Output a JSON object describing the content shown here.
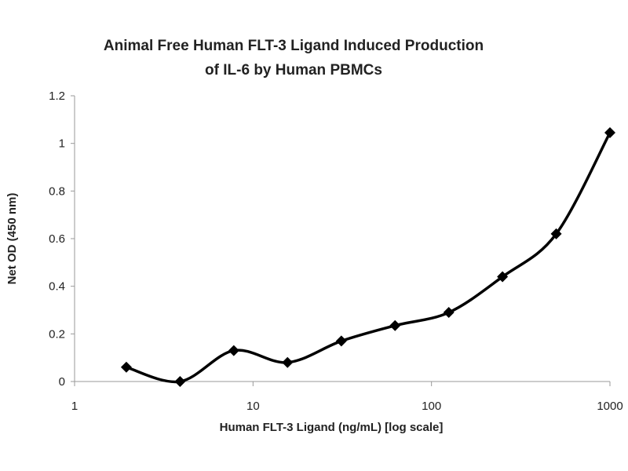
{
  "chart_data": {
    "type": "line",
    "title": [
      "Animal Free Human FLT-3 Ligand Induced Production",
      "of IL-6 by Human PBMCs"
    ],
    "xlabel": "Human FLT-3 Ligand (ng/mL) [log scale]",
    "ylabel": "Net OD (450 nm)",
    "xscale": "log",
    "xlim": [
      1,
      1000
    ],
    "ylim": [
      0,
      1.2
    ],
    "xticks": [
      "1",
      "10",
      "100",
      "1000"
    ],
    "yticks": [
      "0",
      "0.2",
      "0.4",
      "0.6",
      "0.8",
      "1",
      "1.2"
    ],
    "grid": false,
    "marker": "diamond",
    "line_color": "#000000",
    "series": [
      {
        "name": "IL-6",
        "x": [
          1.95,
          3.9,
          7.8,
          15.6,
          31.25,
          62.5,
          125,
          250,
          500,
          1000
        ],
        "y": [
          0.06,
          0.0,
          0.13,
          0.08,
          0.17,
          0.235,
          0.29,
          0.44,
          0.62,
          1.045
        ]
      }
    ]
  }
}
